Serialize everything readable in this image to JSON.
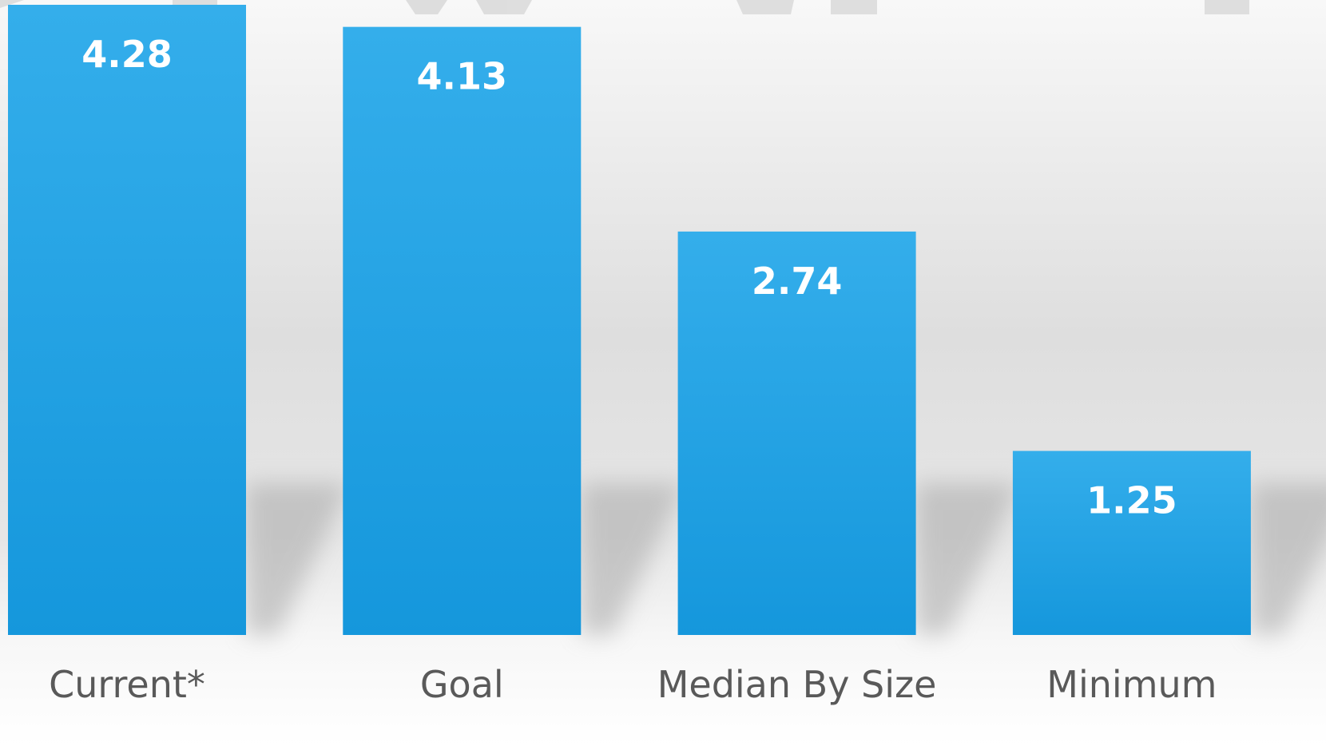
{
  "chart_data": {
    "type": "bar",
    "categories": [
      "Current*",
      "Goal",
      "Median By Size",
      "Minimum"
    ],
    "values": [
      4.28,
      4.13,
      2.74,
      1.25
    ],
    "data_labels": [
      "4.28",
      "4.13",
      "2.74",
      "1.25"
    ],
    "title": "",
    "xlabel": "",
    "ylabel": "",
    "ylim": [
      0,
      4.28
    ],
    "grid": false,
    "legend": "none",
    "colors": {
      "bar_top": "#34AEEB",
      "bar_bottom": "#1597DC",
      "data_label": "#FFFFFF",
      "category_label": "#595959",
      "background_top": "#F6F6F6",
      "background_mid": "#D8D8D8",
      "shadow": "#A8A8A8"
    }
  }
}
